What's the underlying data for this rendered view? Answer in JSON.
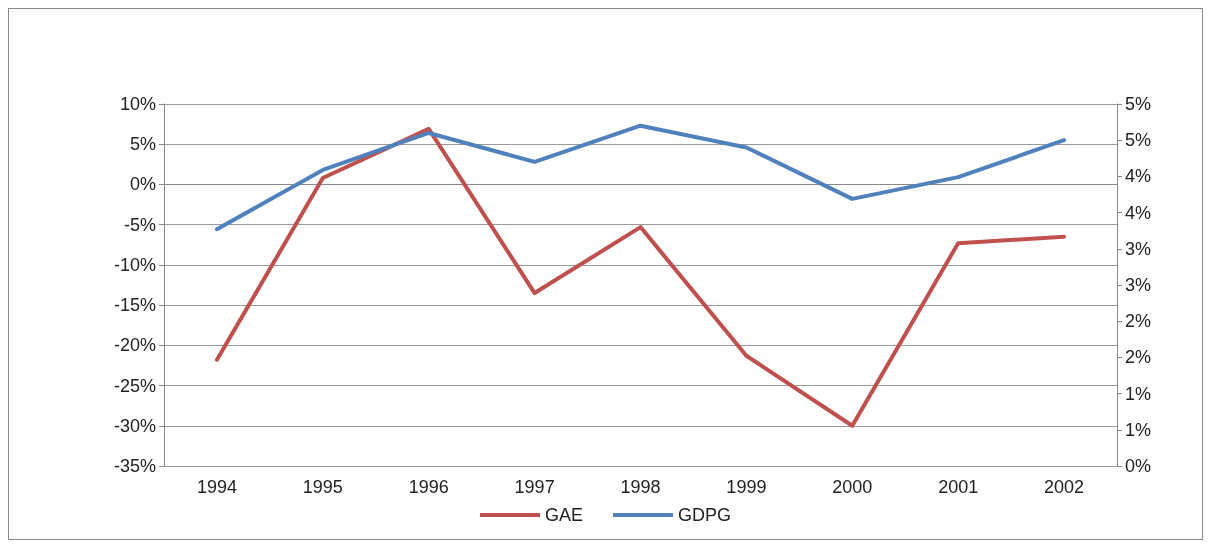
{
  "chart_data": {
    "type": "line",
    "categories": [
      "1994",
      "1995",
      "1996",
      "1997",
      "1998",
      "1999",
      "2000",
      "2001",
      "2002"
    ],
    "series": [
      {
        "name": "GAE",
        "color": "#c0504d",
        "values": [
          -21.8,
          0.8,
          6.9,
          -13.5,
          -5.3,
          -21.3,
          -30,
          -7.3,
          -6.5
        ]
      },
      {
        "name": "GDPG",
        "color": "#4f81bd",
        "axis": "y2",
        "values": [
          3.27,
          4.09,
          4.6,
          4.2,
          4.7,
          4.4,
          3.69,
          3.99,
          4.5
        ]
      }
    ],
    "ylim": [
      -35,
      10
    ],
    "yticks": [
      {
        "value": -35,
        "label": "-35%"
      },
      {
        "value": -30,
        "label": "-30%"
      },
      {
        "value": -25,
        "label": "-25%"
      },
      {
        "value": -20,
        "label": "-20%"
      },
      {
        "value": -15,
        "label": "-15%"
      },
      {
        "value": -10,
        "label": "-10%"
      },
      {
        "value": -5,
        "label": "-5%"
      },
      {
        "value": 0,
        "label": "0%"
      },
      {
        "value": 5,
        "label": "5%"
      },
      {
        "value": 10,
        "label": "10%"
      }
    ],
    "y2lim": [
      0,
      5
    ],
    "y2ticks": [
      {
        "value": 0,
        "label": "0%"
      },
      {
        "value": 0.5,
        "label": "1%"
      },
      {
        "value": 1,
        "label": "1%"
      },
      {
        "value": 1.5,
        "label": "2%"
      },
      {
        "value": 2,
        "label": "2%"
      },
      {
        "value": 2.5,
        "label": "3%"
      },
      {
        "value": 3,
        "label": "3%"
      },
      {
        "value": 3.5,
        "label": "4%"
      },
      {
        "value": 4,
        "label": "4%"
      },
      {
        "value": 4.5,
        "label": "5%"
      },
      {
        "value": 5,
        "label": "5%"
      }
    ],
    "grid": "y",
    "legend": "bottom",
    "marker": "none",
    "line_style": "solid"
  }
}
